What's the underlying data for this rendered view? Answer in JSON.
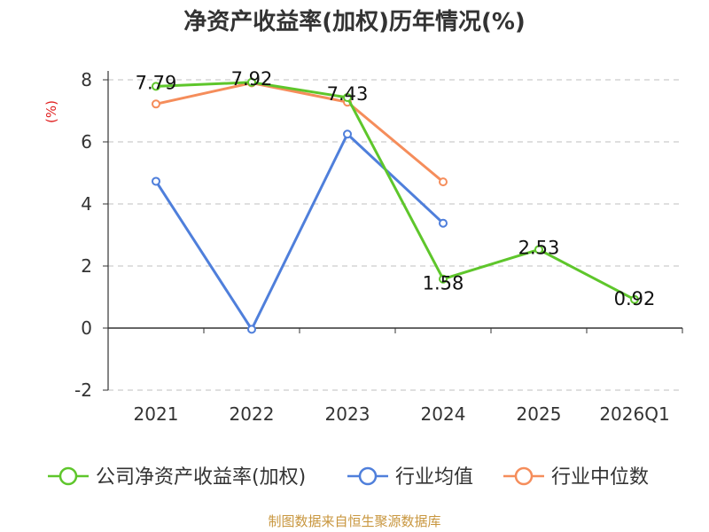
{
  "chart_data": {
    "type": "line",
    "title": "净资产收益率(加权)历年情况(%)",
    "ylabel": "(%)",
    "xlabel": "",
    "categories": [
      "2021",
      "2022",
      "2023",
      "2024",
      "2025",
      "2026Q1"
    ],
    "ylim": [
      -2,
      8
    ],
    "yticks": [
      -2,
      0,
      2,
      4,
      6,
      8
    ],
    "grid": true,
    "legend_position": "bottom",
    "series": [
      {
        "name": "公司净资产收益率(加权)",
        "color": "#5ec62b",
        "values": [
          7.79,
          7.92,
          7.43,
          1.58,
          2.53,
          0.92
        ],
        "show_labels": true
      },
      {
        "name": "行业均值",
        "color": "#4f7fdb",
        "values": [
          4.73,
          -0.04,
          6.25,
          3.38,
          null,
          null
        ],
        "show_labels": false
      },
      {
        "name": "行业中位数",
        "color": "#f58d5b",
        "values": [
          7.22,
          7.9,
          7.28,
          4.71,
          null,
          null
        ],
        "show_labels": false
      }
    ],
    "data_labels": [
      "7.79",
      "7.92",
      "7.43",
      "1.58",
      "2.53",
      "0.92"
    ]
  },
  "source": "制图数据来自恒生聚源数据库"
}
